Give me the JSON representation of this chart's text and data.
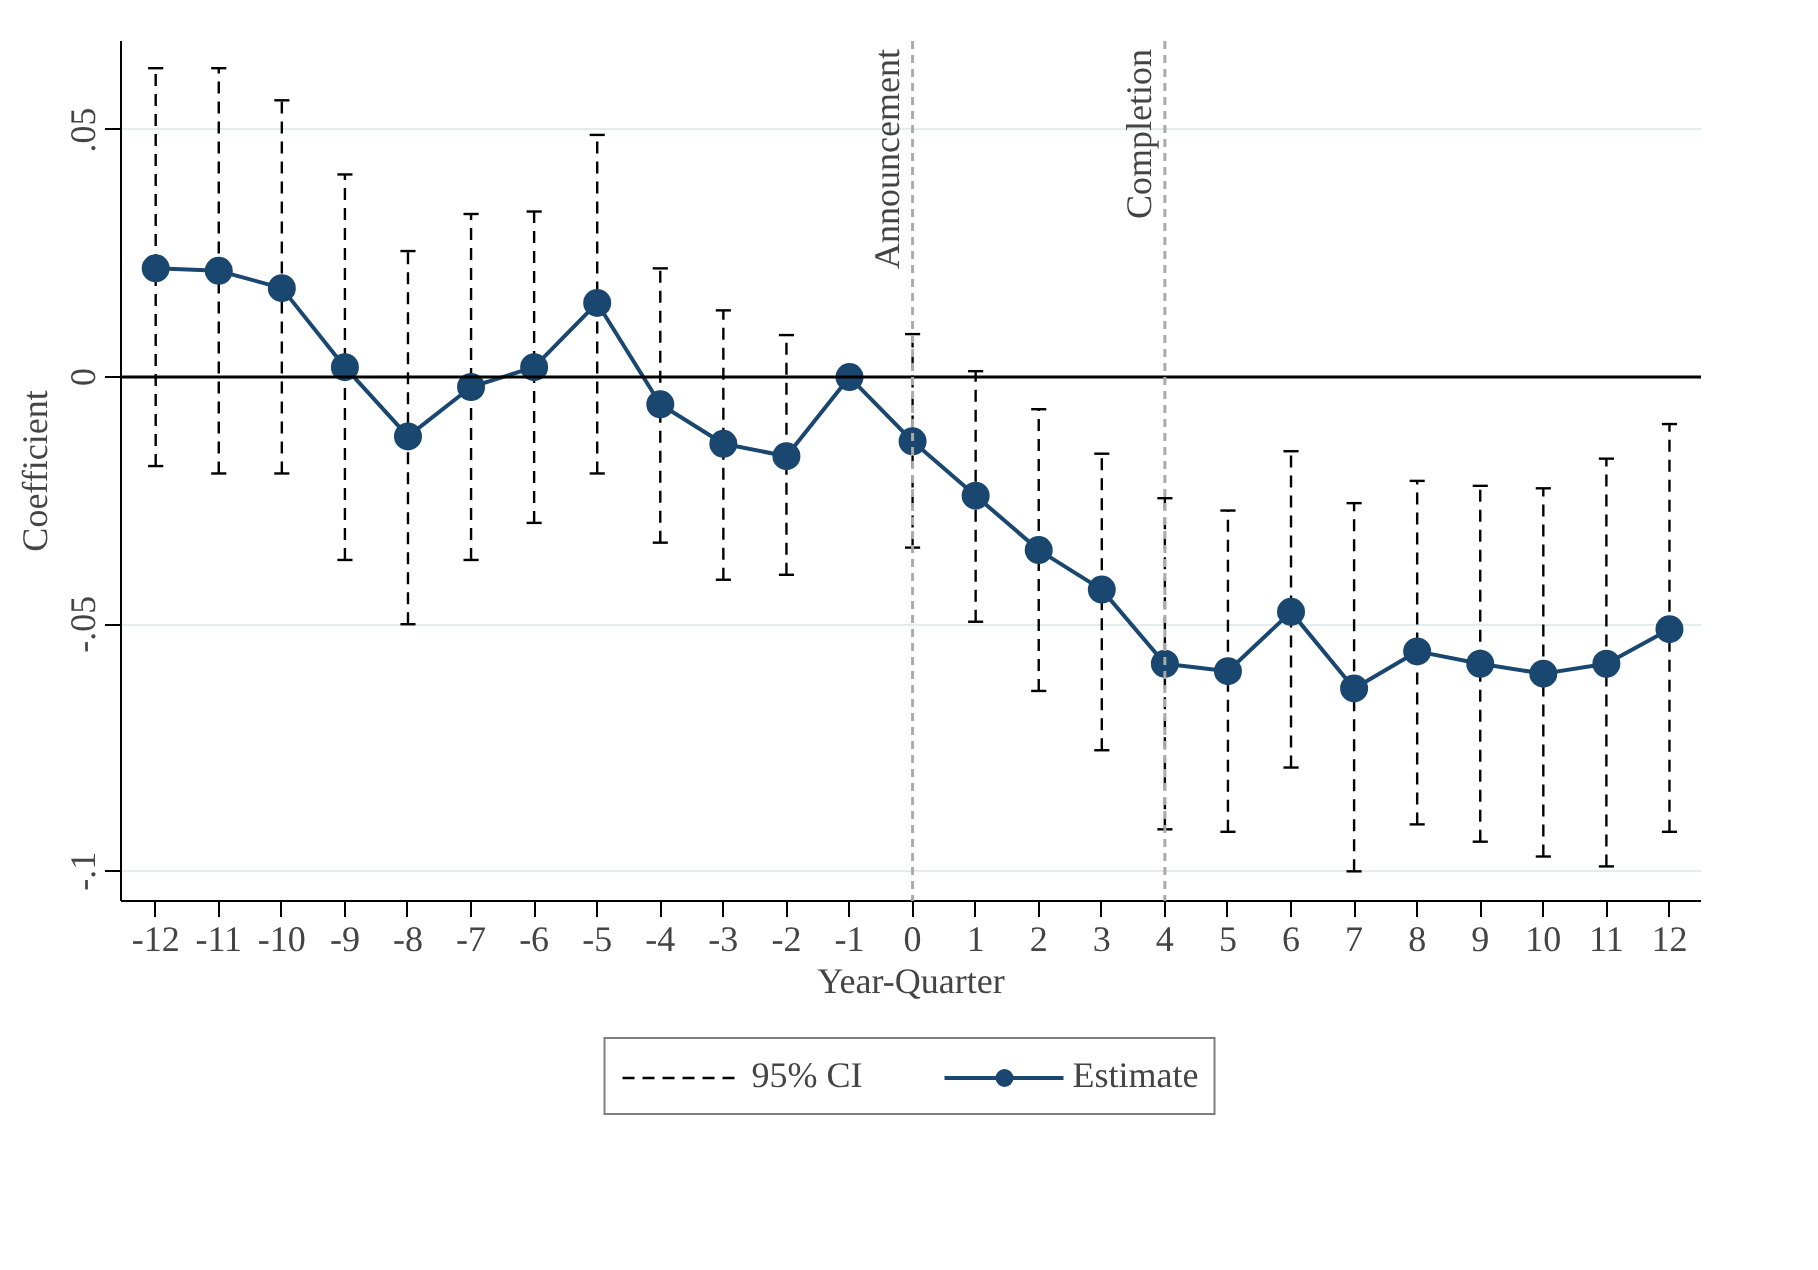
{
  "chart_data": {
    "type": "line",
    "xlabel": "Year-Quarter",
    "ylabel": "Coefficient",
    "x": [
      -12,
      -11,
      -10,
      -9,
      -8,
      -7,
      -6,
      -5,
      -4,
      -3,
      -2,
      -1,
      0,
      1,
      2,
      3,
      4,
      5,
      6,
      7,
      8,
      9,
      10,
      11,
      12
    ],
    "series": [
      {
        "name": "Estimate",
        "color": "#1a476f",
        "values": [
          0.022,
          0.0215,
          0.018,
          0.002,
          -0.012,
          -0.002,
          0.002,
          0.015,
          -0.0055,
          -0.0135,
          -0.016,
          0,
          -0.013,
          -0.024,
          -0.035,
          -0.043,
          -0.058,
          -0.0595,
          -0.0475,
          -0.063,
          -0.0555,
          -0.058,
          -0.06,
          -0.058,
          -0.051
        ],
        "errors": [
          [
            -0.018,
            0.0625
          ],
          [
            -0.0195,
            0.0625
          ],
          [
            -0.0195,
            0.056
          ],
          [
            -0.037,
            0.041
          ],
          [
            -0.05,
            0.0255
          ],
          [
            -0.037,
            0.033
          ],
          [
            -0.0295,
            0.0335
          ],
          [
            -0.0195,
            0.049
          ],
          [
            -0.0335,
            0.022
          ],
          [
            -0.041,
            0.0135
          ],
          [
            -0.04,
            0.0085
          ],
          null,
          [
            -0.0345,
            0.0087
          ],
          [
            -0.0495,
            0.0012
          ],
          [
            -0.0635,
            -0.0065
          ],
          [
            -0.0755,
            -0.0155
          ],
          [
            -0.0915,
            -0.0245
          ],
          [
            -0.092,
            -0.027
          ],
          [
            -0.079,
            -0.015
          ],
          [
            -0.1,
            -0.0255
          ],
          [
            -0.0905,
            -0.021
          ],
          [
            -0.094,
            -0.022
          ],
          [
            -0.097,
            -0.0225
          ],
          [
            -0.099,
            -0.0165
          ],
          [
            -0.092,
            -0.0095
          ]
        ]
      }
    ],
    "annotations": [
      "95% CI"
    ],
    "xlim": [
      -12.55,
      12.5
    ],
    "ylim": [
      -0.106,
      0.068
    ],
    "xticks": [
      -12,
      -11,
      -10,
      -9,
      -8,
      -7,
      -6,
      -5,
      -4,
      -3,
      -2,
      -1,
      0,
      1,
      2,
      3,
      4,
      5,
      6,
      7,
      8,
      9,
      10,
      11,
      12
    ],
    "yticks": [
      {
        "value": -0.1,
        "label": "-.1"
      },
      {
        "value": -0.05,
        "label": "-.05"
      },
      {
        "value": 0,
        "label": "0"
      },
      {
        "value": 0.05,
        "label": ".05"
      }
    ],
    "ref_lines": [
      {
        "axis": "y",
        "value": 0,
        "label": null,
        "color": "#000000",
        "line_style": "solid"
      },
      {
        "axis": "x",
        "value": 0,
        "label": "Announcement",
        "color": "#aaaaaa",
        "line_style": "dashed"
      },
      {
        "axis": "x",
        "value": 4,
        "label": "Completion",
        "color": "#aaaaaa",
        "line_style": "dashed"
      }
    ],
    "grid": "y",
    "legend": "bottom",
    "marker": "circle",
    "line_style": "solid"
  }
}
